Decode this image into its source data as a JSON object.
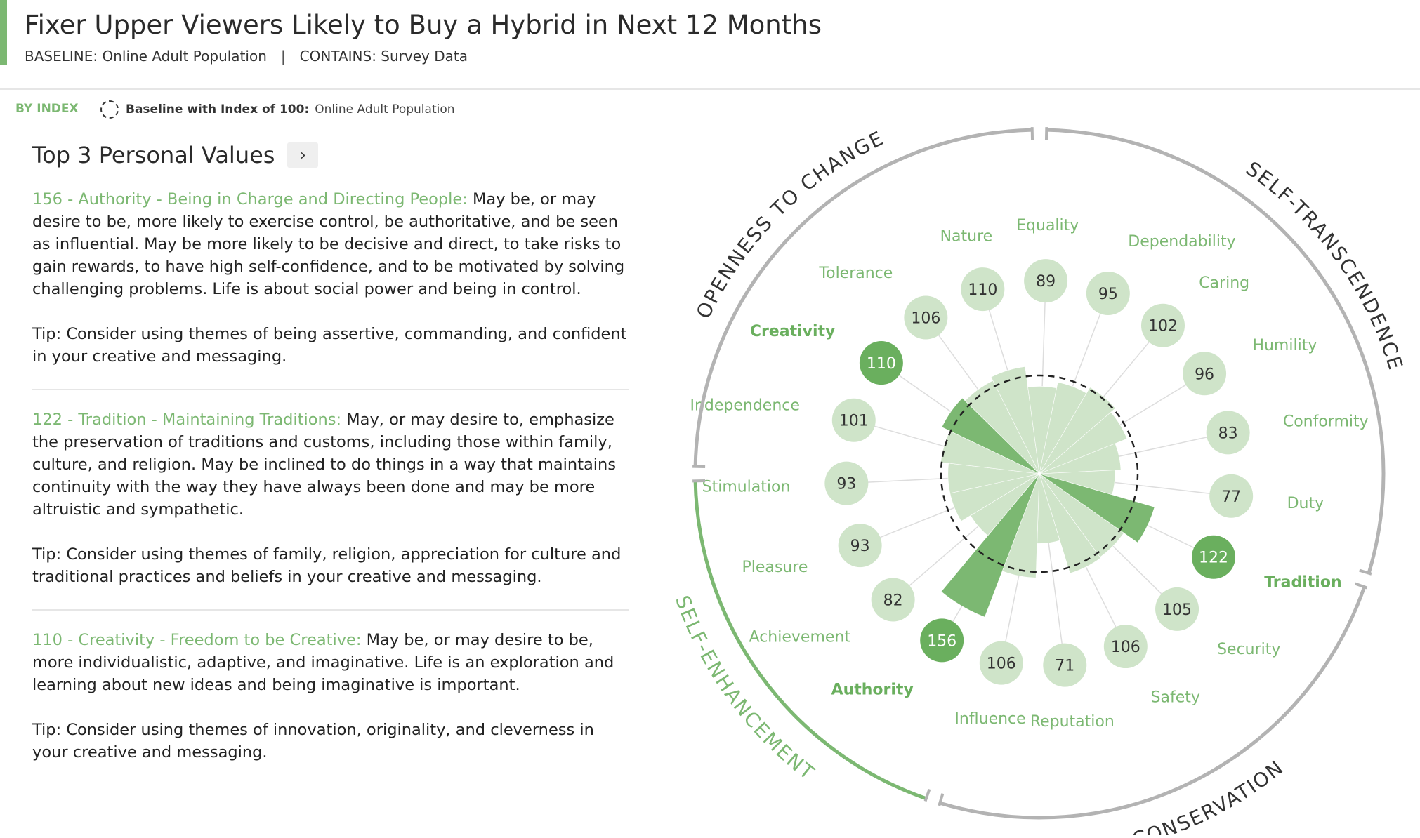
{
  "header": {
    "title": "Fixer Upper Viewers Likely to Buy a Hybrid in Next 12 Months",
    "baseline": "BASELINE: Online Adult Population",
    "separator": "|",
    "contains": "CONTAINS: Survey Data"
  },
  "toolbar": {
    "mode": "BY INDEX",
    "baseline_label": "Baseline with Index of 100:",
    "baseline_value": "Online Adult Population"
  },
  "top3": {
    "title": "Top 3 Personal Values",
    "expand_icon": "chevron-right-icon",
    "items": [
      {
        "heading": "156 - Authority - Being in Charge and Directing People:",
        "description": " May be, or may desire to be, more likely to exercise control, be authoritative, and be seen as influential. May be more likely to be decisive and direct, to take risks to gain rewards, to have high self-confidence, and to be motivated by solving challenging problems. Life is about social power and being in control.",
        "tip": "Tip: Consider using themes of being assertive, commanding, and confident in your creative and messaging."
      },
      {
        "heading": "122 - Tradition - Maintaining Traditions:",
        "description": " May, or may desire to, emphasize the preservation of traditions and customs, including those within family, culture, and religion. May be inclined to do things in a way that maintains continuity with the way they have always been done and may be more altruistic and sympathetic.",
        "tip": "Tip: Consider using themes of family, religion, appreciation for culture and traditional practices and beliefs in your creative and messaging."
      },
      {
        "heading": "110 - Creativity - Freedom to be Creative:",
        "description": " May be, or may desire to be, more individualistic, adaptive, and imaginative. Life is an exploration and learning about new ideas and being imaginative is important.",
        "tip": "Tip: Consider using themes of innovation, originality, and cleverness in your creative and messaging."
      }
    ]
  },
  "colors": {
    "accent": "#7cb872",
    "light_green": "#cfe4c9",
    "highlight_green": "#7cb872",
    "dark_green": "#6aaf5e",
    "ring_gray": "#b3b3b3"
  },
  "chart_data": {
    "type": "polar-bar",
    "baseline": 100,
    "series": [
      {
        "values": [
          110,
          89,
          95,
          102,
          96,
          83,
          77,
          122,
          105,
          106,
          71,
          106,
          156,
          82,
          93,
          93,
          101,
          110,
          106
        ]
      }
    ],
    "categories": [
      "Nature",
      "Equality",
      "Dependability",
      "Caring",
      "Humility",
      "Conformity",
      "Duty",
      "Tradition",
      "Security",
      "Safety",
      "Reputation",
      "Influence",
      "Authority",
      "Achievement",
      "Pleasure",
      "Stimulation",
      "Independence",
      "Creativity",
      "Tolerance"
    ],
    "values": [
      110,
      89,
      95,
      102,
      96,
      83,
      77,
      122,
      105,
      106,
      71,
      106,
      156,
      82,
      93,
      93,
      101,
      110,
      106
    ],
    "highlighted": [
      "Tradition",
      "Authority",
      "Creativity"
    ],
    "groups": [
      {
        "name": "SELF-TRANSCENDENCE",
        "active": false
      },
      {
        "name": "CONSERVATION",
        "active": false
      },
      {
        "name": "SELF-ENHANCEMENT",
        "active": true
      },
      {
        "name": "OPENNESS TO CHANGE",
        "active": false
      }
    ]
  }
}
